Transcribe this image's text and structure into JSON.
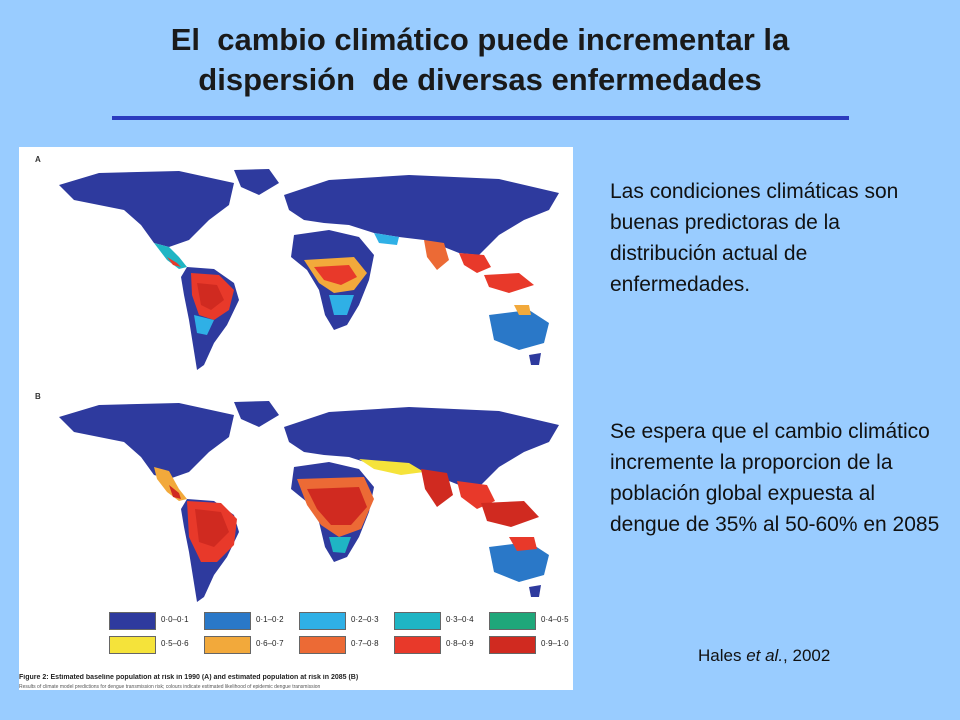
{
  "title": {
    "line1": "El  cambio climático puede incrementar la",
    "line2": "dispersión  de diversas enfermedades"
  },
  "text_block_1": "Las condiciones climáticas son buenas predictoras de la distribución actual de enfermedades.",
  "text_block_2": "Se espera que el cambio climático incremente la proporcion de la población global expuesta al dengue de 35% al 50-60% en 2085",
  "reference": {
    "author": "Hales ",
    "etal": "et al.",
    "year": ", 2002"
  },
  "figure": {
    "panel_a": "A",
    "panel_b": "B",
    "caption": "Figure 2: Estimated baseline population at risk in 1990 (A) and estimated population at risk in 2085 (B)",
    "caption_sub": "Results of climate model predictions for dengue transmission risk; colours indicate estimated likelihood of epidemic dengue transmission",
    "legend": [
      {
        "label": "0·0–0·1",
        "color": "#2e3a9e"
      },
      {
        "label": "0·1–0·2",
        "color": "#2a78c8"
      },
      {
        "label": "0·2–0·3",
        "color": "#2fb0e6"
      },
      {
        "label": "0·3–0·4",
        "color": "#1fb5c4"
      },
      {
        "label": "0·4–0·5",
        "color": "#1fa77a"
      },
      {
        "label": "0·5–0·6",
        "color": "#f5e33a"
      },
      {
        "label": "0·6–0·7",
        "color": "#f2a93b"
      },
      {
        "label": "0·7–0·8",
        "color": "#ec6a35"
      },
      {
        "label": "0·8–0·9",
        "color": "#e8392a"
      },
      {
        "label": "0·9–1·0",
        "color": "#d02a20"
      }
    ]
  }
}
